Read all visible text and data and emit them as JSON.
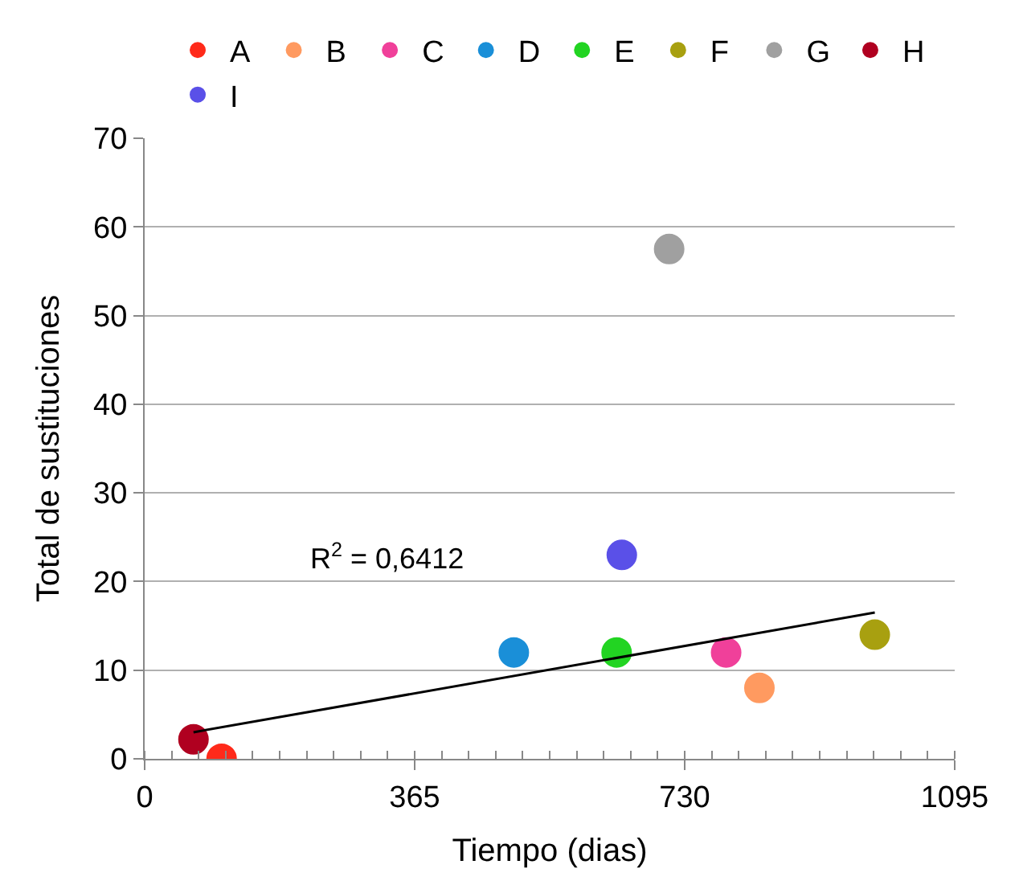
{
  "chart_data": {
    "type": "scatter",
    "xlabel": "Tiempo (dias)",
    "ylabel": "Total de sustituciones",
    "xlim": [
      0,
      1095
    ],
    "xticks": [
      0,
      365,
      730,
      1095
    ],
    "ylim": [
      0,
      70
    ],
    "yticks": [
      0,
      10,
      20,
      30,
      40,
      50,
      60,
      70
    ],
    "grid": "y",
    "legend": "top",
    "marker": "circle",
    "series": [
      {
        "name": "A",
        "color": "#ff2a1a",
        "x": [
          104
        ],
        "values": [
          0
        ]
      },
      {
        "name": "B",
        "color": "#ff9a60",
        "x": [
          831
        ],
        "values": [
          8
        ]
      },
      {
        "name": "C",
        "color": "#f0409a",
        "x": [
          786
        ],
        "values": [
          12
        ]
      },
      {
        "name": "D",
        "color": "#1a8fd8",
        "x": [
          499
        ],
        "values": [
          12
        ]
      },
      {
        "name": "E",
        "color": "#22d422",
        "x": [
          638
        ],
        "values": [
          12
        ]
      },
      {
        "name": "F",
        "color": "#a8a010",
        "x": [
          987
        ],
        "values": [
          14
        ]
      },
      {
        "name": "G",
        "color": "#a0a0a0",
        "x": [
          709
        ],
        "values": [
          57.5
        ]
      },
      {
        "name": "H",
        "color": "#b00020",
        "x": [
          66
        ],
        "values": [
          2.2
        ]
      },
      {
        "name": "I",
        "color": "#5a50e8",
        "x": [
          645
        ],
        "values": [
          23
        ]
      },
      {
        "type": "line",
        "color": "#000000",
        "x": [
          66,
          987
        ],
        "values": [
          3,
          16.5
        ],
        "line_style": "solid",
        "marker": "none"
      }
    ],
    "annotations": [
      "R$^{2}$ = 0,6412"
    ]
  }
}
